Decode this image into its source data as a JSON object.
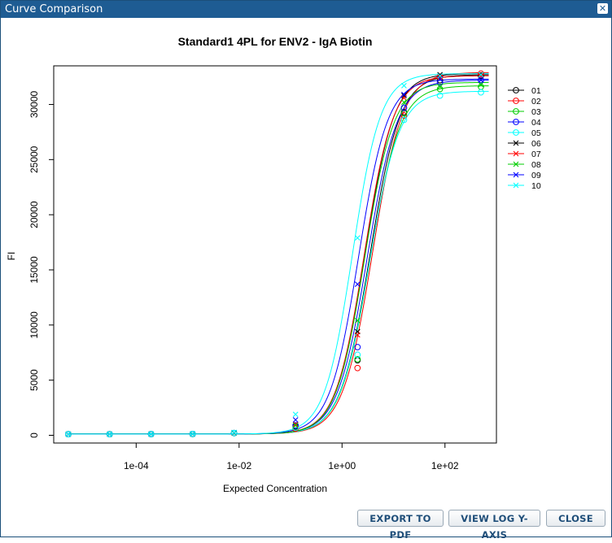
{
  "window": {
    "title": "Curve Comparison"
  },
  "buttons": {
    "export_pdf": "EXPORT TO PDF",
    "view_log": "VIEW LOG Y-AXIS",
    "close": "CLOSE"
  },
  "colors": {
    "titlebar": "#1e5c93",
    "series": [
      "#000000",
      "#df536b",
      "#61d04f",
      "#2297e6",
      "#28e2e5",
      "#000000",
      "#df536b",
      "#61d04f",
      "#2297e6",
      "#28e2e5"
    ]
  },
  "chart_data": {
    "type": "line",
    "title": "Standard1 4PL for ENV2 - IgA Biotin",
    "xlabel": "Expected Concentration",
    "ylabel": "FI",
    "x_scale": "log10",
    "xlim": [
      2.5e-06,
      1000
    ],
    "ylim": [
      -700,
      33500
    ],
    "x_ticks": [
      0.0001,
      0.01,
      1,
      100
    ],
    "x_tick_labels": [
      "1e-04",
      "1e-02",
      "1e+00",
      "1e+02"
    ],
    "y_ticks": [
      0,
      5000,
      10000,
      15000,
      20000,
      25000,
      30000
    ],
    "y_tick_labels": [
      "0",
      "5000",
      "10000",
      "15000",
      "20000",
      "25000",
      "30000"
    ],
    "x_points": [
      4.8e-06,
      3.05e-05,
      0.000195,
      0.00125,
      0.008,
      0.125,
      2.0,
      16,
      80,
      500
    ],
    "legend_position": "right",
    "grid": false,
    "series": [
      {
        "name": "01",
        "marker": "circle",
        "color": "#000000",
        "bottom": 120,
        "top": 32700,
        "ec50": 3.5,
        "hill": 1.5,
        "values": [
          100,
          100,
          110,
          120,
          200,
          800,
          6800,
          29300,
          32200,
          32600
        ]
      },
      {
        "name": "02",
        "marker": "circle",
        "color": "#ff0000",
        "bottom": 120,
        "top": 32900,
        "ec50": 3.9,
        "hill": 1.5,
        "values": [
          100,
          100,
          110,
          120,
          200,
          600,
          6100,
          29000,
          32500,
          32800
        ]
      },
      {
        "name": "03",
        "marker": "circle",
        "color": "#00cd00",
        "bottom": 120,
        "top": 31700,
        "ec50": 3.5,
        "hill": 1.5,
        "values": [
          100,
          100,
          110,
          120,
          200,
          700,
          6900,
          29200,
          31400,
          31600
        ]
      },
      {
        "name": "04",
        "marker": "circle",
        "color": "#0000ff",
        "bottom": 120,
        "top": 32200,
        "ec50": 3.1,
        "hill": 1.5,
        "values": [
          100,
          100,
          110,
          120,
          200,
          900,
          8000,
          29700,
          32000,
          32200
        ]
      },
      {
        "name": "05",
        "marker": "circle",
        "color": "#00ffff",
        "bottom": 120,
        "top": 31200,
        "ec50": 3.4,
        "hill": 1.5,
        "values": [
          100,
          100,
          110,
          120,
          200,
          700,
          7300,
          28600,
          30800,
          31100
        ]
      },
      {
        "name": "06",
        "marker": "x",
        "color": "#000000",
        "bottom": 120,
        "top": 32800,
        "ec50": 2.8,
        "hill": 1.55,
        "values": [
          100,
          100,
          110,
          120,
          220,
          1000,
          9400,
          30800,
          32700,
          32700
        ]
      },
      {
        "name": "07",
        "marker": "x",
        "color": "#ff0000",
        "bottom": 120,
        "top": 32600,
        "ec50": 2.7,
        "hill": 1.55,
        "values": [
          100,
          100,
          110,
          120,
          220,
          1000,
          9100,
          30600,
          32500,
          32600
        ]
      },
      {
        "name": "08",
        "marker": "x",
        "color": "#00cd00",
        "bottom": 120,
        "top": 32000,
        "ec50": 2.75,
        "hill": 1.55,
        "values": [
          100,
          100,
          110,
          120,
          220,
          900,
          10400,
          30200,
          31600,
          31800
        ]
      },
      {
        "name": "09",
        "marker": "x",
        "color": "#0000ff",
        "bottom": 120,
        "top": 32300,
        "ec50": 2.1,
        "hill": 1.55,
        "values": [
          100,
          100,
          110,
          130,
          250,
          1400,
          13700,
          30900,
          32300,
          32200
        ]
      },
      {
        "name": "10",
        "marker": "x",
        "color": "#00ffff",
        "bottom": 120,
        "top": 32800,
        "ec50": 1.6,
        "hill": 1.6,
        "values": [
          100,
          100,
          110,
          130,
          260,
          1900,
          17900,
          31700,
          32600,
          32700
        ]
      }
    ]
  }
}
